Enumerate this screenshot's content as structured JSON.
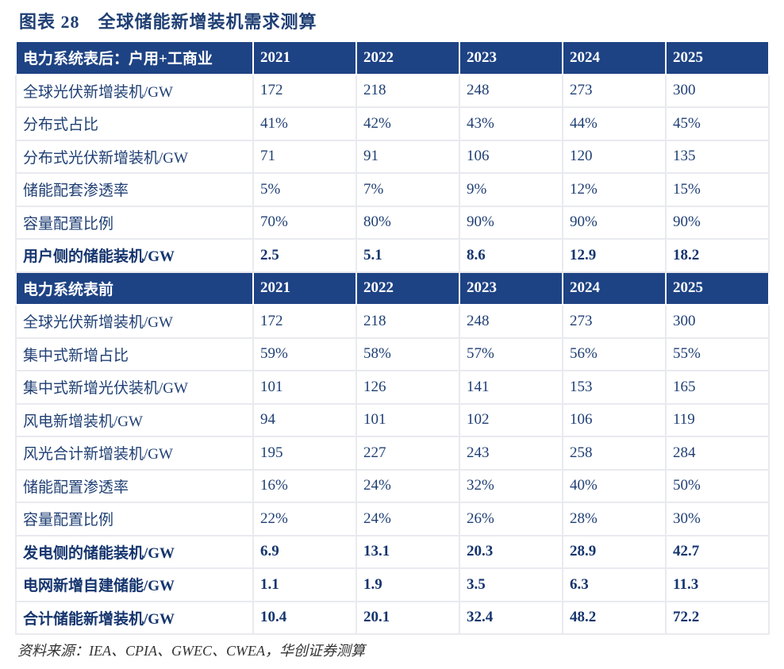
{
  "title": "图表 28　全球储能新增装机需求测算",
  "sections": [
    {
      "header": [
        "电力系统表后：户用+工商业",
        "2021",
        "2022",
        "2023",
        "2024",
        "2025"
      ],
      "rows": [
        {
          "cells": [
            "全球光伏新增装机/GW",
            "172",
            "218",
            "248",
            "273",
            "300"
          ],
          "bold": false
        },
        {
          "cells": [
            "分布式占比",
            "41%",
            "42%",
            "43%",
            "44%",
            "45%"
          ],
          "bold": false
        },
        {
          "cells": [
            "分布式光伏新增装机/GW",
            "71",
            "91",
            "106",
            "120",
            "135"
          ],
          "bold": false
        },
        {
          "cells": [
            "储能配套渗透率",
            "5%",
            "7%",
            "9%",
            "12%",
            "15%"
          ],
          "bold": false
        },
        {
          "cells": [
            "容量配置比例",
            "70%",
            "80%",
            "90%",
            "90%",
            "90%"
          ],
          "bold": false
        },
        {
          "cells": [
            "用户侧的储能装机/GW",
            "2.5",
            "5.1",
            "8.6",
            "12.9",
            "18.2"
          ],
          "bold": true
        }
      ]
    },
    {
      "header": [
        "电力系统表前",
        "2021",
        "2022",
        "2023",
        "2024",
        "2025"
      ],
      "rows": [
        {
          "cells": [
            "全球光伏新增装机/GW",
            "172",
            "218",
            "248",
            "273",
            "300"
          ],
          "bold": false
        },
        {
          "cells": [
            "集中式新增占比",
            "59%",
            "58%",
            "57%",
            "56%",
            "55%"
          ],
          "bold": false
        },
        {
          "cells": [
            "集中式新增光伏装机/GW",
            "101",
            "126",
            "141",
            "153",
            "165"
          ],
          "bold": false
        },
        {
          "cells": [
            "风电新增装机/GW",
            "94",
            "101",
            "102",
            "106",
            "119"
          ],
          "bold": false
        },
        {
          "cells": [
            "风光合计新增装机/GW",
            "195",
            "227",
            "243",
            "258",
            "284"
          ],
          "bold": false
        },
        {
          "cells": [
            "储能配置渗透率",
            "16%",
            "24%",
            "32%",
            "40%",
            "50%"
          ],
          "bold": false
        },
        {
          "cells": [
            "容量配置比例",
            "22%",
            "24%",
            "26%",
            "28%",
            "30%"
          ],
          "bold": false
        },
        {
          "cells": [
            "发电侧的储能装机/GW",
            "6.9",
            "13.1",
            "20.3",
            "28.9",
            "42.7"
          ],
          "bold": true
        },
        {
          "cells": [
            "电网新增自建储能/GW",
            "1.1",
            "1.9",
            "3.5",
            "6.3",
            "11.3"
          ],
          "bold": true
        },
        {
          "cells": [
            "合计储能新增装机/GW",
            "10.4",
            "20.1",
            "32.4",
            "48.2",
            "72.2"
          ],
          "bold": true
        }
      ]
    }
  ],
  "source": "资料来源：IEA、CPIA、GWEC、CWEA，华创证券测算",
  "colors": {
    "header_bg": "#1e4384",
    "text": "#1f3f74",
    "border": "#e9eaf0"
  }
}
